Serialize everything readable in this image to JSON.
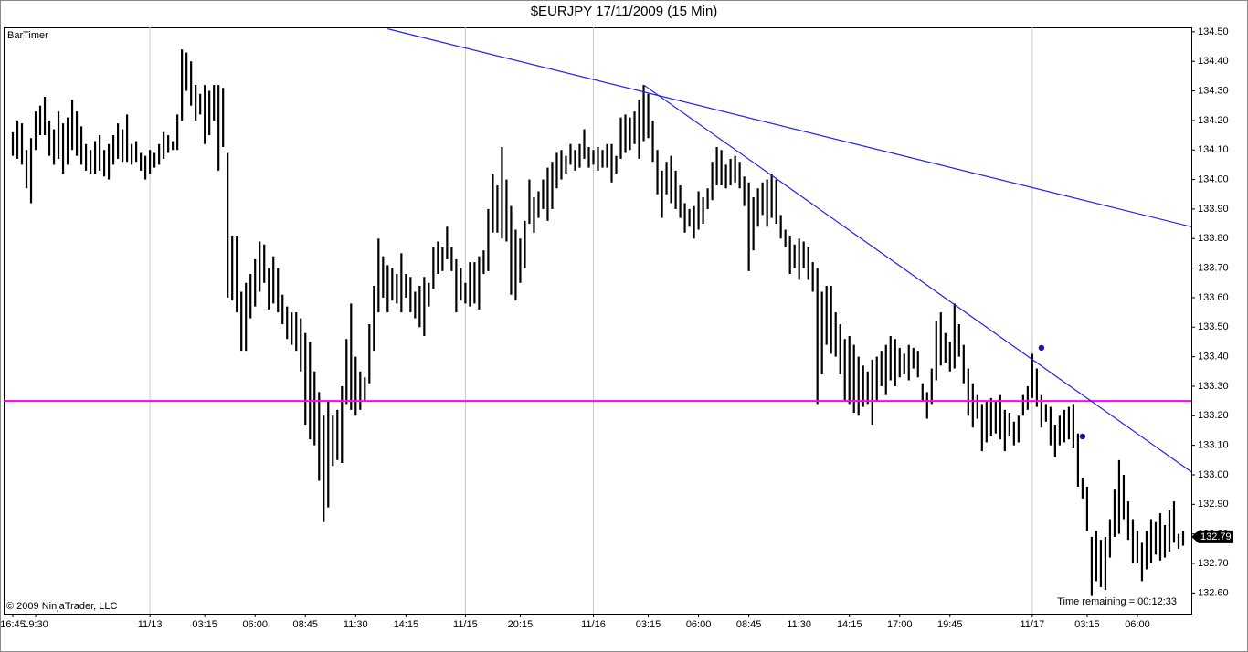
{
  "chart_data": {
    "type": "high_low",
    "title": "$EURJPY  17/11/2009 (15 Min)",
    "indicator": "BarTimer",
    "copyright": "© 2009 NinjaTrader, LLC",
    "timer_text": "Time remaining = 00:12:33",
    "color": "#000000",
    "grid": true,
    "xlim": [
      -2,
      257.8
    ],
    "ylim": [
      132.53,
      134.515
    ],
    "xticks": [
      {
        "value": 0,
        "label": "16:45"
      },
      {
        "value": 5,
        "label": "19:30"
      },
      {
        "value": 30,
        "label": "11/13"
      },
      {
        "value": 42,
        "label": "03:15"
      },
      {
        "value": 53,
        "label": "06:00"
      },
      {
        "value": 64,
        "label": "08:45"
      },
      {
        "value": 75,
        "label": "11:30"
      },
      {
        "value": 86,
        "label": "14:15"
      },
      {
        "value": 99,
        "label": "11/15"
      },
      {
        "value": 111,
        "label": "20:15"
      },
      {
        "value": 127,
        "label": "11/16"
      },
      {
        "value": 139,
        "label": "03:15"
      },
      {
        "value": 150,
        "label": "06:00"
      },
      {
        "value": 161,
        "label": "08:45"
      },
      {
        "value": 172,
        "label": "11:30"
      },
      {
        "value": 183,
        "label": "14:15"
      },
      {
        "value": 194,
        "label": "17:00"
      },
      {
        "value": 205,
        "label": "19:45"
      },
      {
        "value": 223,
        "label": "11/17"
      },
      {
        "value": 235,
        "label": "03:15"
      },
      {
        "value": 246,
        "label": "06:00"
      }
    ],
    "yticks": [
      {
        "value": 132.6,
        "label": "132.60"
      },
      {
        "value": 132.7,
        "label": "132.70"
      },
      {
        "value": 132.8,
        "label": "132.80"
      },
      {
        "value": 132.9,
        "label": "132.90"
      },
      {
        "value": 133.0,
        "label": "133.00"
      },
      {
        "value": 133.1,
        "label": "133.10"
      },
      {
        "value": 133.2,
        "label": "133.20"
      },
      {
        "value": 133.3,
        "label": "133.30"
      },
      {
        "value": 133.4,
        "label": "133.40"
      },
      {
        "value": 133.5,
        "label": "133.50"
      },
      {
        "value": 133.6,
        "label": "133.60"
      },
      {
        "value": 133.7,
        "label": "133.70"
      },
      {
        "value": 133.8,
        "label": "133.80"
      },
      {
        "value": 133.9,
        "label": "133.90"
      },
      {
        "value": 134.0,
        "label": "134.00"
      },
      {
        "value": 134.1,
        "label": "134.10"
      },
      {
        "value": 134.2,
        "label": "134.20"
      },
      {
        "value": 134.3,
        "label": "134.30"
      },
      {
        "value": 134.4,
        "label": "134.40"
      },
      {
        "value": 134.5,
        "label": "134.50"
      }
    ],
    "high": [
      134.16,
      134.2,
      134.19,
      134.1,
      134.14,
      134.23,
      134.25,
      134.28,
      134.2,
      134.17,
      134.23,
      134.19,
      134.21,
      134.27,
      134.23,
      134.18,
      134.12,
      134.1,
      134.13,
      134.15,
      134.1,
      134.12,
      134.15,
      134.19,
      134.17,
      134.22,
      134.12,
      134.13,
      134.09,
      134.08,
      134.1,
      134.09,
      134.12,
      134.16,
      134.15,
      134.13,
      134.22,
      134.44,
      134.43,
      134.4,
      134.32,
      134.29,
      134.32,
      134.3,
      134.32,
      134.32,
      134.31,
      134.09,
      133.81,
      133.81,
      133.62,
      133.65,
      133.68,
      133.73,
      133.79,
      133.78,
      133.7,
      133.74,
      133.7,
      133.61,
      133.57,
      133.55,
      133.55,
      133.53,
      133.48,
      133.45,
      133.35,
      133.28,
      133.2,
      133.25,
      133.2,
      133.22,
      133.3,
      133.46,
      133.58,
      133.4,
      133.35,
      133.33,
      133.51,
      133.64,
      133.8,
      133.74,
      133.71,
      133.7,
      133.68,
      133.75,
      133.68,
      133.67,
      133.62,
      133.64,
      133.67,
      133.65,
      133.77,
      133.79,
      133.77,
      133.84,
      133.77,
      133.73,
      133.7,
      133.65,
      133.72,
      133.72,
      133.74,
      133.76,
      133.9,
      134.02,
      133.98,
      134.11,
      134.0,
      133.91,
      133.83,
      133.8,
      133.86,
      134.0,
      133.94,
      133.96,
      134.0,
      134.04,
      134.06,
      134.09,
      134.1,
      134.08,
      134.12,
      134.1,
      134.12,
      134.17,
      134.11,
      134.1,
      134.11,
      134.1,
      134.12,
      134.12,
      134.08,
      134.21,
      134.22,
      134.21,
      134.23,
      134.27,
      134.32,
      134.29,
      134.2,
      134.1,
      134.03,
      134.06,
      134.08,
      134.03,
      133.98,
      133.92,
      133.9,
      133.91,
      133.96,
      133.94,
      133.97,
      134.06,
      134.11,
      134.1,
      134.05,
      134.07,
      134.08,
      134.06,
      134.01,
      133.99,
      133.94,
      133.97,
      133.99,
      134.0,
      134.02,
      134.0,
      133.88,
      133.83,
      133.81,
      133.78,
      133.8,
      133.79,
      133.77,
      133.72,
      133.7,
      133.62,
      133.64,
      133.64,
      133.55,
      133.51,
      133.46,
      133.47,
      133.44,
      133.4,
      133.37,
      133.35,
      133.39,
      133.4,
      133.42,
      133.44,
      133.47,
      133.46,
      133.43,
      133.41,
      133.44,
      133.43,
      133.42,
      133.31,
      133.28,
      133.36,
      133.52,
      133.55,
      133.48,
      133.45,
      133.58,
      133.51,
      133.44,
      133.36,
      133.31,
      133.27,
      133.24,
      133.25,
      133.26,
      133.25,
      133.27,
      133.22,
      133.21,
      133.18,
      133.2,
      133.27,
      133.3,
      133.41,
      133.36,
      133.27,
      133.24,
      133.23,
      133.17,
      133.2,
      133.22,
      133.23,
      133.24,
      133.14,
      132.99,
      132.96,
      132.79,
      132.81,
      132.78,
      132.79,
      132.85,
      132.95,
      133.05,
      133.0,
      132.91,
      132.85,
      132.81,
      132.77,
      132.81,
      132.85,
      132.84,
      132.87,
      132.83,
      132.88,
      132.91,
      132.8,
      132.81
    ],
    "low": [
      134.08,
      134.07,
      134.05,
      133.97,
      133.92,
      134.1,
      134.15,
      134.15,
      134.08,
      134.05,
      134.07,
      134.02,
      134.05,
      134.1,
      134.08,
      134.05,
      134.03,
      134.02,
      134.02,
      134.03,
      134.01,
      134.0,
      134.05,
      134.07,
      134.06,
      134.06,
      134.05,
      134.06,
      134.03,
      134.0,
      134.02,
      134.04,
      134.05,
      134.07,
      134.09,
      134.1,
      134.1,
      134.2,
      134.3,
      134.25,
      134.2,
      134.22,
      134.12,
      134.15,
      134.2,
      134.03,
      134.11,
      133.6,
      133.59,
      133.55,
      133.42,
      133.42,
      133.53,
      133.57,
      133.62,
      133.65,
      133.56,
      133.58,
      133.55,
      133.51,
      133.46,
      133.44,
      133.42,
      133.35,
      133.17,
      133.12,
      133.1,
      132.98,
      132.84,
      132.89,
      133.03,
      133.05,
      133.04,
      133.24,
      133.22,
      133.2,
      133.22,
      133.25,
      133.31,
      133.42,
      133.55,
      133.6,
      133.55,
      133.59,
      133.58,
      133.55,
      133.6,
      133.55,
      133.53,
      133.5,
      133.47,
      133.57,
      133.63,
      133.68,
      133.69,
      133.73,
      133.69,
      133.55,
      133.59,
      133.58,
      133.57,
      133.58,
      133.56,
      133.68,
      133.69,
      133.82,
      133.82,
      133.8,
      133.79,
      133.61,
      133.59,
      133.65,
      133.7,
      133.85,
      133.82,
      133.87,
      133.9,
      133.86,
      133.9,
      133.97,
      134.0,
      134.02,
      134.05,
      134.03,
      134.04,
      134.07,
      134.04,
      134.05,
      134.03,
      134.04,
      134.04,
      133.99,
      134.02,
      134.07,
      134.09,
      134.1,
      134.12,
      134.07,
      134.13,
      134.14,
      134.06,
      133.95,
      133.87,
      133.95,
      133.92,
      133.9,
      133.87,
      133.82,
      133.84,
      133.8,
      133.83,
      133.85,
      133.9,
      133.93,
      133.98,
      133.98,
      133.97,
      133.98,
      133.99,
      133.97,
      133.91,
      133.69,
      133.76,
      133.84,
      133.88,
      133.84,
      133.87,
      133.85,
      133.8,
      133.77,
      133.68,
      133.7,
      133.66,
      133.7,
      133.66,
      133.62,
      133.24,
      133.34,
      133.44,
      133.41,
      133.4,
      133.34,
      133.25,
      133.24,
      133.21,
      133.2,
      133.23,
      133.24,
      133.17,
      133.25,
      133.3,
      133.27,
      133.32,
      133.3,
      133.33,
      133.34,
      133.32,
      133.36,
      133.33,
      133.25,
      133.19,
      133.24,
      133.32,
      133.37,
      133.38,
      133.35,
      133.36,
      133.4,
      133.31,
      133.2,
      133.16,
      133.19,
      133.08,
      133.11,
      133.13,
      133.14,
      133.12,
      133.08,
      133.13,
      133.1,
      133.11,
      133.2,
      133.22,
      133.26,
      133.23,
      133.16,
      133.18,
      133.1,
      133.06,
      133.1,
      133.11,
      133.12,
      133.09,
      132.96,
      132.92,
      132.81,
      132.59,
      132.64,
      132.62,
      132.61,
      132.72,
      132.79,
      132.8,
      132.85,
      132.78,
      132.7,
      132.7,
      132.64,
      132.68,
      132.7,
      132.73,
      132.71,
      132.72,
      132.74,
      132.77,
      132.75,
      132.76
    ],
    "trend_lines": [
      {
        "color": "#2222dd",
        "points": [
          [
            82,
            134.51
          ],
          [
            257.8,
            133.84
          ]
        ]
      },
      {
        "color": "#2222dd",
        "points": [
          [
            138,
            134.32
          ],
          [
            257.8,
            133.01
          ]
        ]
      }
    ],
    "horizontal_line": {
      "value": 133.25,
      "color": "#ff00ff"
    },
    "markers": [
      {
        "x": 225,
        "y": 133.43,
        "color": "#1a1aa0"
      },
      {
        "x": 234,
        "y": 133.13,
        "color": "#1a1aa0"
      }
    ],
    "last_price": 132.79
  }
}
